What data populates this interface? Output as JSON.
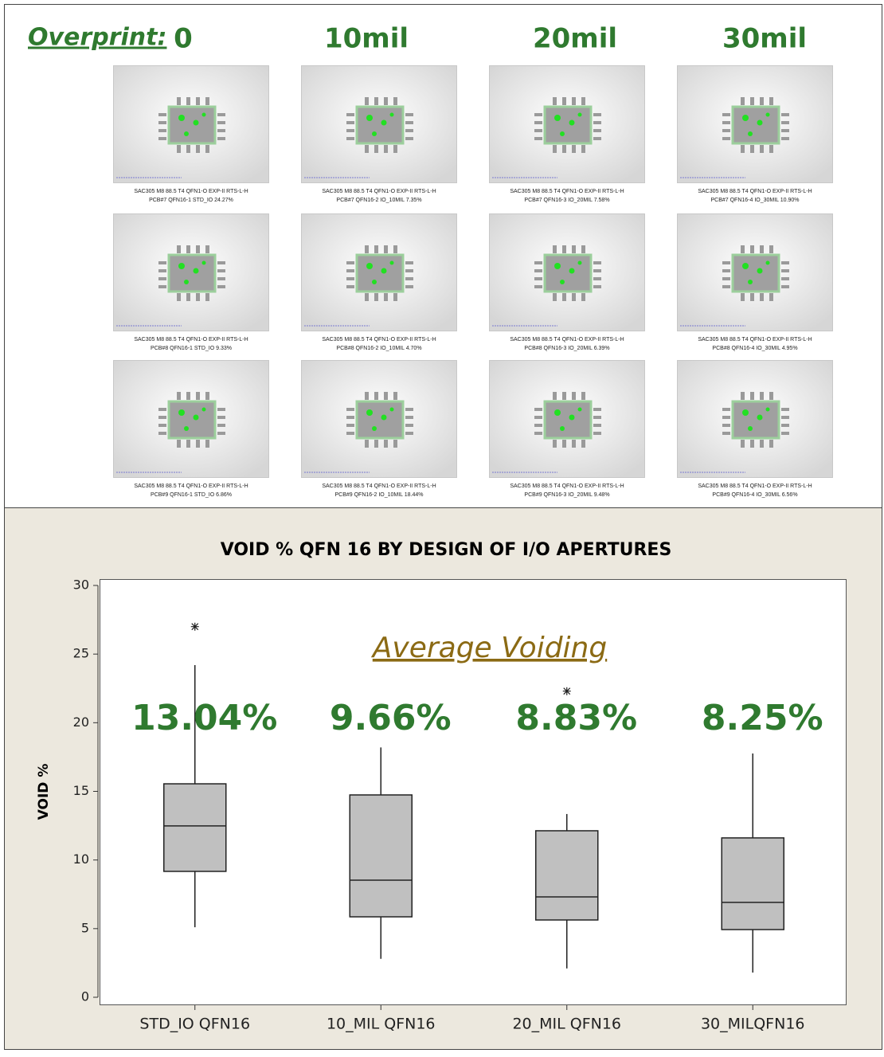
{
  "header": {
    "label": "Overprint:",
    "columns": [
      "0",
      "10mil",
      "20mil",
      "30mil"
    ]
  },
  "images": {
    "rows": [
      [
        [
          "SAC305 M8 88.5 T4 QFN1-O EXP-II RTS-L-H",
          "PCB#7 QFN16-1 STD_IO 24.27%"
        ],
        [
          "SAC305 M8 88.5 T4 QFN1-O EXP-II RTS-L-H",
          "PCB#7 QFN16-2 IO_10MIL 7.35%"
        ],
        [
          "SAC305 M8 88.5 T4 QFN1-O EXP-II RTS-L-H",
          "PCB#7 QFN16-3 IO_20MIL 7.58%"
        ],
        [
          "SAC305 M8 88.5 T4 QFN1-O EXP-II RTS-L-H",
          "PCB#7 QFN16-4 IO_30MIL 10.90%"
        ]
      ],
      [
        [
          "SAC305 M8 88.5 T4 QFN1-O EXP-II RTS-L-H",
          "PCB#8 QFN16-1 STD_IO 9.33%"
        ],
        [
          "SAC305 M8 88.5 T4 QFN1-O EXP-II RTS-L-H",
          "PCB#8 QFN16-2 IO_10MIL 4.70%"
        ],
        [
          "SAC305 M8 88.5 T4 QFN1-O EXP-II RTS-L-H",
          "PCB#8 QFN16-3 IO_20MIL 6.39%"
        ],
        [
          "SAC305 M8 88.5 T4 QFN1-O EXP-II RTS-L-H",
          "PCB#8 QFN16-4 IO_30MIL 4.95%"
        ]
      ],
      [
        [
          "SAC305 M8 88.5 T4 QFN1-O EXP-II RTS-L-H",
          "PCB#9 QFN16-1 STD_IO 6.86%"
        ],
        [
          "SAC305 M8 88.5 T4 QFN1-O EXP-II RTS-L-H",
          "PCB#9 QFN16-2 IO_10MIL 18.44%"
        ],
        [
          "SAC305 M8 88.5 T4 QFN1-O EXP-II RTS-L-H",
          "PCB#9 QFN16-3 IO_20MIL 9.48%"
        ],
        [
          "SAC305 M8 88.5 T4 QFN1-O EXP-II RTS-L-H",
          "PCB#9 QFN16-4 IO_30MIL 6.56%"
        ]
      ]
    ]
  },
  "chart_data": {
    "type": "box",
    "title": "VOID % QFN 16 BY DESIGN OF I/O APERTURES",
    "y_label": "VOID %",
    "categories": [
      "STD_IO QFN16",
      "10_MIL QFN16",
      "20_MIL QFN16",
      "30_MILQFN16"
    ],
    "boxes": [
      {
        "low": 5.1,
        "q1": 9.17,
        "median": 12.48,
        "q3": 15.55,
        "high": 24.2,
        "outliers": [
          27.0
        ]
      },
      {
        "low": 2.8,
        "q1": 5.86,
        "median": 8.53,
        "q3": 14.74,
        "high": 18.2,
        "outliers": []
      },
      {
        "low": 2.1,
        "q1": 5.63,
        "median": 7.31,
        "q3": 12.13,
        "high": 13.35,
        "outliers": [
          22.3
        ]
      },
      {
        "low": 1.8,
        "q1": 4.93,
        "median": 6.91,
        "q3": 11.61,
        "high": 17.76,
        "outliers": []
      }
    ],
    "color": "#c0c0c0",
    "annotation": "Average Voiding",
    "averages": [
      "13.04%",
      "9.66%",
      "8.83%",
      "8.25%"
    ],
    "ylim": [
      0,
      30
    ],
    "yticks": [
      0,
      5,
      10,
      15,
      20,
      25,
      30
    ]
  }
}
